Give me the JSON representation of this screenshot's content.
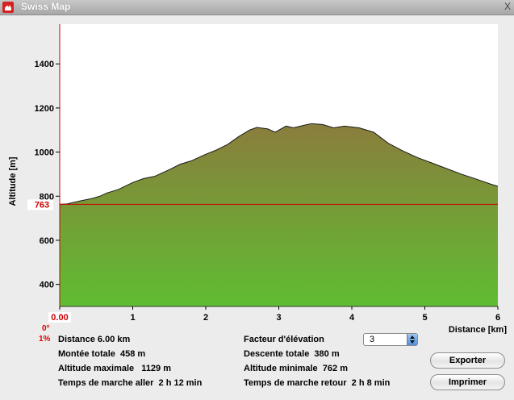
{
  "window": {
    "title": "Swiss Map"
  },
  "chart_data": {
    "type": "area",
    "xlabel": "Distance [km]",
    "ylabel": "Altitude [m]",
    "xlim": [
      0,
      6
    ],
    "ylim": [
      300,
      1580
    ],
    "xticks": [
      "0.00",
      "1",
      "2",
      "3",
      "4",
      "5",
      "6"
    ],
    "yticks": [
      400,
      600,
      800,
      1000,
      1200,
      1400
    ],
    "reference_line": {
      "value": 763,
      "label": "763",
      "color": "#cc0000"
    },
    "series": [
      {
        "x": [
          0,
          0.1,
          0.3,
          0.45,
          0.55,
          0.65,
          0.8,
          1.0,
          1.15,
          1.3,
          1.5,
          1.65,
          1.8,
          2.0,
          2.15,
          2.3,
          2.45,
          2.6,
          2.7,
          2.85,
          2.95,
          3.1,
          3.2,
          3.35,
          3.45,
          3.6,
          3.75,
          3.9,
          4.1,
          4.3,
          4.5,
          4.7,
          4.9,
          5.1,
          5.3,
          5.5,
          5.7,
          5.9,
          6.0
        ],
        "values": [
          763,
          765,
          780,
          790,
          800,
          815,
          830,
          862,
          880,
          890,
          920,
          945,
          960,
          990,
          1010,
          1035,
          1070,
          1100,
          1112,
          1105,
          1090,
          1118,
          1110,
          1122,
          1129,
          1125,
          1110,
          1118,
          1110,
          1090,
          1040,
          1005,
          975,
          950,
          925,
          900,
          878,
          855,
          845
        ]
      }
    ],
    "fill_top_color": "#8a7d3c",
    "fill_bottom_color": "#5fbd32"
  },
  "slope": {
    "degrees": "0°",
    "percent": "1%"
  },
  "stats": {
    "distance": "Distance 6.00 km",
    "ascent": "Montée totale  458 m",
    "max_altitude": "Altitude maximale   1129 m",
    "walk_time_out": "Temps de marche aller  2 h 12 min",
    "elevation_factor_label": "Facteur d'élévation",
    "descent": "Descente totale  380 m",
    "min_altitude": "Altitude minimale  762 m",
    "walk_time_back": "Temps de marche retour  2 h 8 min"
  },
  "elevation_factor": {
    "value": "3"
  },
  "buttons": {
    "export": "Exporter",
    "print": "Imprimer"
  }
}
